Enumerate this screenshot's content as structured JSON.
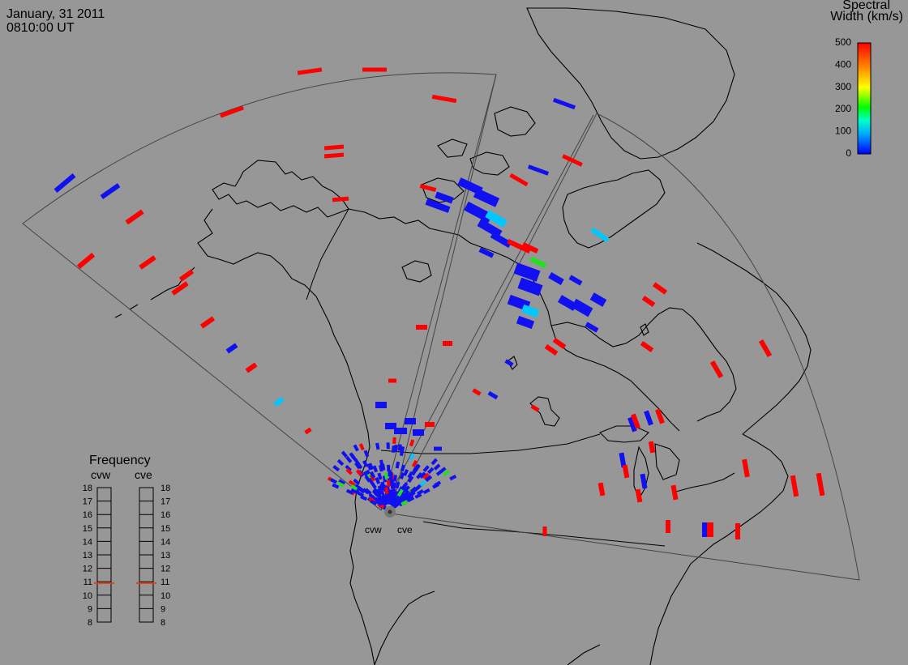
{
  "header": {
    "date": "January, 31 2011",
    "time": "0810:00 UT"
  },
  "legend": {
    "title_line1": "Spectral",
    "title_line2": "Width (km/s)",
    "ticks": [
      "0",
      "100",
      "200",
      "300",
      "400",
      "500"
    ],
    "range": [
      0,
      500
    ],
    "colors": [
      "#0000ff",
      "#00aaff",
      "#00ffcc",
      "#00ff00",
      "#ffff00",
      "#ff8800",
      "#ff0000"
    ]
  },
  "radars": {
    "west_label": "cvw",
    "east_label": "cve"
  },
  "frequency_panel": {
    "title": "Frequency",
    "radar_labels": [
      "cvw",
      "cve"
    ],
    "ticks": [
      "18",
      "17",
      "16",
      "15",
      "14",
      "13",
      "12",
      "11",
      "10",
      "9",
      "8"
    ],
    "cvw_value_mhz": 10.9,
    "cve_value_mhz": 10.9,
    "marker_color": "#e0401a"
  },
  "palette": {
    "background": "#979797",
    "coast_line": "#000000",
    "fov_line": "#333333"
  }
}
